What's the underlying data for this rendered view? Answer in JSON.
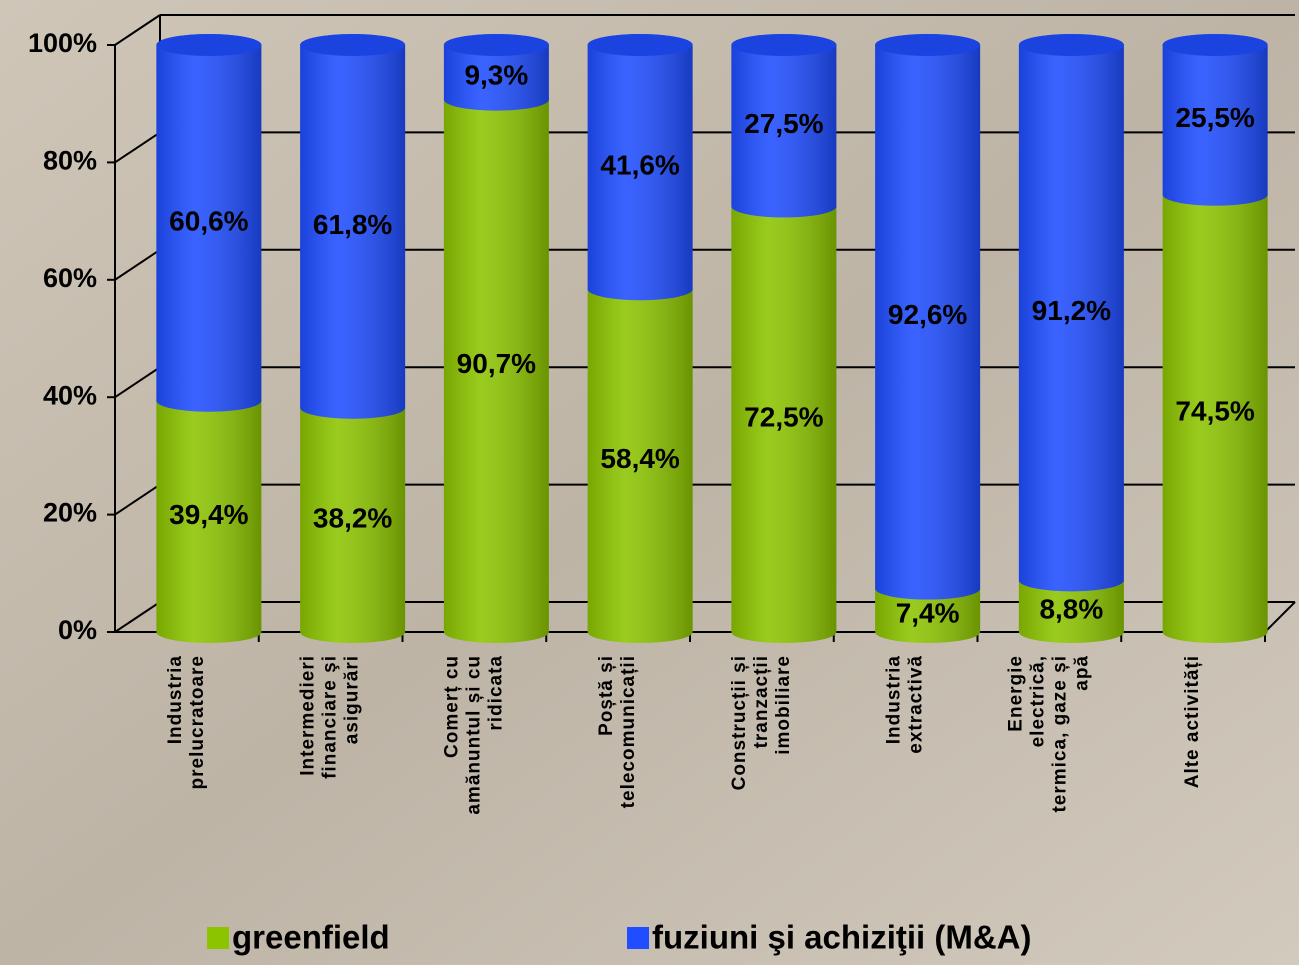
{
  "chart_data": {
    "type": "stacked_bar",
    "categories": [
      [
        "Industria",
        "prelucratoare"
      ],
      [
        "Intermedieri",
        "financiare şi",
        "asigurări"
      ],
      [
        "Comerț cu",
        "amănuntul și cu",
        "ridicata"
      ],
      [
        "Poștă și",
        "telecomunicații"
      ],
      [
        "Construcții și",
        "tranzacții",
        "imobiliare"
      ],
      [
        "Industria",
        "extractivă"
      ],
      [
        "Energie",
        "electrică,",
        "termica, gaze și",
        "apă"
      ],
      [
        "Alte activități"
      ]
    ],
    "series": [
      {
        "name": "greenfield",
        "color": "#8cc400",
        "values": [
          39.4,
          38.2,
          90.7,
          58.4,
          72.5,
          7.4,
          8.8,
          74.5
        ],
        "value_labels": [
          "39,4%",
          "38,2%",
          "90,7%",
          "58,4%",
          "72,5%",
          "7,4%",
          "8,8%",
          "74,5%"
        ]
      },
      {
        "name": "fuziuni şi achiziţii (M&A)",
        "color": "#1f4dff",
        "values": [
          60.6,
          61.8,
          9.3,
          41.6,
          27.5,
          92.6,
          91.2,
          25.5
        ],
        "value_labels": [
          "60,6%",
          "61,8%",
          "9,3%",
          "41,6%",
          "27,5%",
          "92,6%",
          "91,2%",
          "25,5%"
        ]
      }
    ],
    "ylim": [
      0,
      100
    ],
    "yticks": [
      {
        "value": 0,
        "label": "0%"
      },
      {
        "value": 20,
        "label": "20%"
      },
      {
        "value": 40,
        "label": "40%"
      },
      {
        "value": 60,
        "label": "60%"
      },
      {
        "value": 80,
        "label": "80%"
      },
      {
        "value": 100,
        "label": "100%"
      }
    ],
    "grid": true
  }
}
